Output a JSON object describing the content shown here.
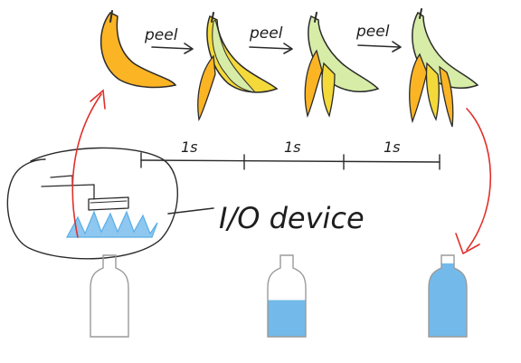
{
  "peel_steps": [
    {
      "label": "peel"
    },
    {
      "label": "peel"
    },
    {
      "label": "peel"
    }
  ],
  "timeline": {
    "intervals": [
      {
        "label": "1s"
      },
      {
        "label": "1s"
      },
      {
        "label": "1s"
      }
    ]
  },
  "io_device": {
    "label": "I/O device"
  },
  "bottles": [
    {
      "fill_fraction": 0.0
    },
    {
      "fill_fraction": 0.45
    },
    {
      "fill_fraction": 0.9
    }
  ],
  "colors": {
    "banana": "#fbb424",
    "banana_peeled": "#f3d93a",
    "banana_flesh": "#d7eca6",
    "water": "#5aaee6",
    "arrow_red": "#e0302a",
    "ink": "#2b2b2b",
    "bottle_outline": "#9a9a9a"
  }
}
